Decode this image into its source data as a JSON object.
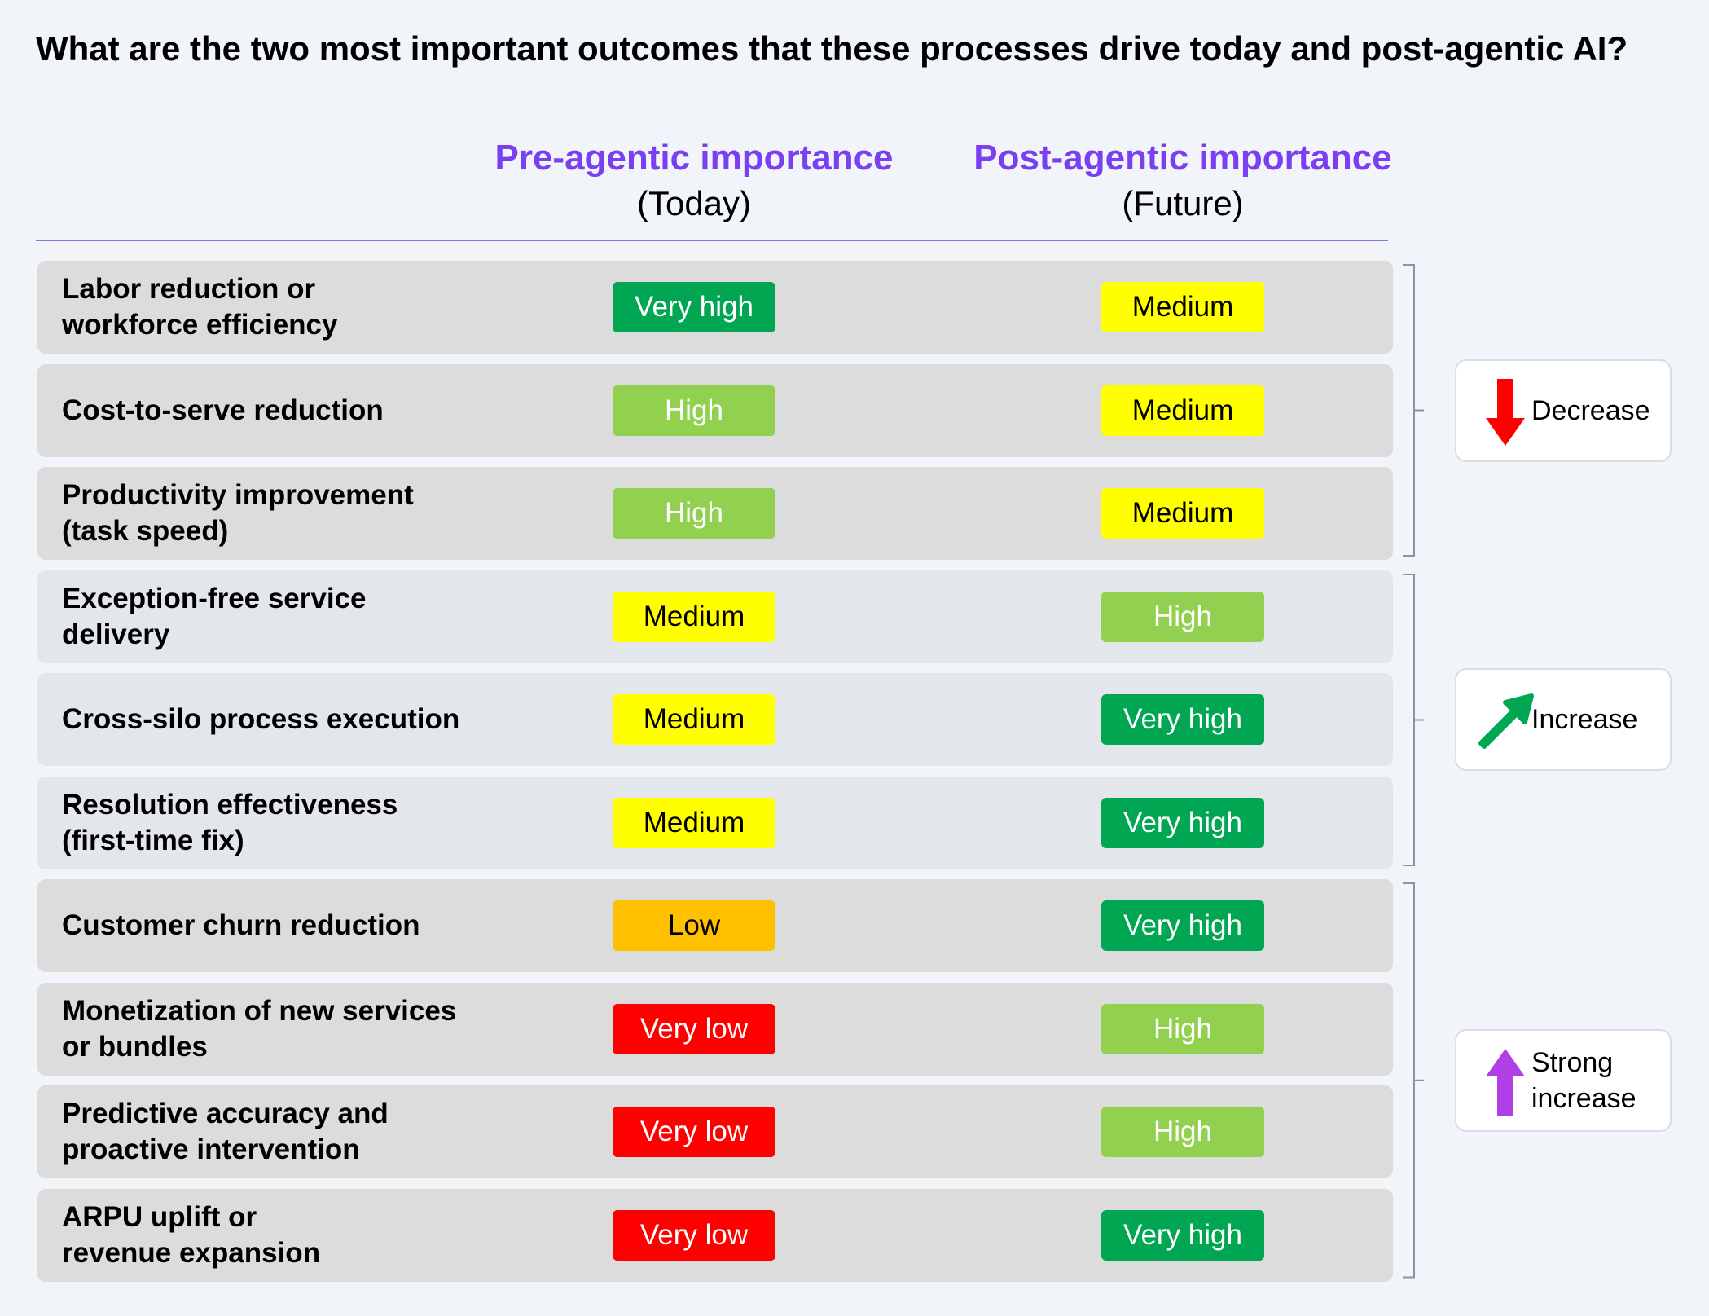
{
  "title": "What are the two most important outcomes that these processes drive today and post-agentic AI?",
  "columns": {
    "pre": {
      "title": "Pre-agentic importance",
      "subtitle": "(Today)"
    },
    "post": {
      "title": "Post-agentic importance",
      "subtitle": "(Future)"
    }
  },
  "level_colors": {
    "Very high": {
      "bg": "#00a651",
      "fg": "#ffffff"
    },
    "High": {
      "bg": "#92d050",
      "fg": "#ffffff"
    },
    "Medium": {
      "bg": "#ffff00",
      "fg": "#000000"
    },
    "Low": {
      "bg": "#ffc000",
      "fg": "#000000"
    },
    "Very low": {
      "bg": "#ff0000",
      "fg": "#ffffff"
    }
  },
  "rows": [
    {
      "label": "Labor reduction or\nworkforce efficiency",
      "pre": "Very high",
      "post": "Medium",
      "shade": "gray"
    },
    {
      "label": "Cost-to-serve reduction",
      "pre": "High",
      "post": "Medium",
      "shade": "gray"
    },
    {
      "label": "Productivity improvement\n(task speed)",
      "pre": "High",
      "post": "Medium",
      "shade": "gray"
    },
    {
      "label": "Exception-free service\ndelivery",
      "pre": "Medium",
      "post": "High",
      "shade": "light"
    },
    {
      "label": "Cross-silo process execution",
      "pre": "Medium",
      "post": "Very high",
      "shade": "light"
    },
    {
      "label": "Resolution effectiveness\n(first-time fix)",
      "pre": "Medium",
      "post": "Very high",
      "shade": "light"
    },
    {
      "label": "Customer churn reduction",
      "pre": "Low",
      "post": "Very high",
      "shade": "gray"
    },
    {
      "label": "Monetization of new services\nor bundles",
      "pre": "Very low",
      "post": "High",
      "shade": "gray"
    },
    {
      "label": "Predictive accuracy and\nproactive intervention",
      "pre": "Very low",
      "post": "High",
      "shade": "gray"
    },
    {
      "label": "ARPU uplift or\nrevenue expansion",
      "pre": "Very low",
      "post": "Very high",
      "shade": "gray"
    }
  ],
  "groups": [
    {
      "label": "Decrease",
      "icon": "down-arrow-icon",
      "color": "#ff0000",
      "rows": [
        0,
        2
      ]
    },
    {
      "label": "Increase",
      "icon": "up-right-arrow-icon",
      "color": "#00a651",
      "rows": [
        3,
        5
      ]
    },
    {
      "label": "Strong\nincrease",
      "icon": "up-arrow-icon",
      "color": "#b23ee8",
      "rows": [
        6,
        9
      ]
    }
  ],
  "chart_data": {
    "type": "table",
    "title": "What are the two most important outcomes that these processes drive today and post-agentic AI?",
    "columns": [
      "Pre-agentic importance (Today)",
      "Post-agentic importance (Future)"
    ],
    "categories": [
      "Labor reduction or workforce efficiency",
      "Cost-to-serve reduction",
      "Productivity improvement (task speed)",
      "Exception-free service delivery",
      "Cross-silo process execution",
      "Resolution effectiveness (first-time fix)",
      "Customer churn reduction",
      "Monetization of new services or bundles",
      "Predictive accuracy and proactive intervention",
      "ARPU uplift or revenue expansion"
    ],
    "series": [
      {
        "name": "Pre-agentic importance",
        "values": [
          "Very high",
          "High",
          "High",
          "Medium",
          "Medium",
          "Medium",
          "Low",
          "Very low",
          "Very low",
          "Very low"
        ]
      },
      {
        "name": "Post-agentic importance",
        "values": [
          "Medium",
          "Medium",
          "Medium",
          "High",
          "Very high",
          "Very high",
          "Very high",
          "High",
          "High",
          "Very high"
        ]
      }
    ],
    "legend": [
      "Decrease",
      "Increase",
      "Strong increase"
    ]
  }
}
